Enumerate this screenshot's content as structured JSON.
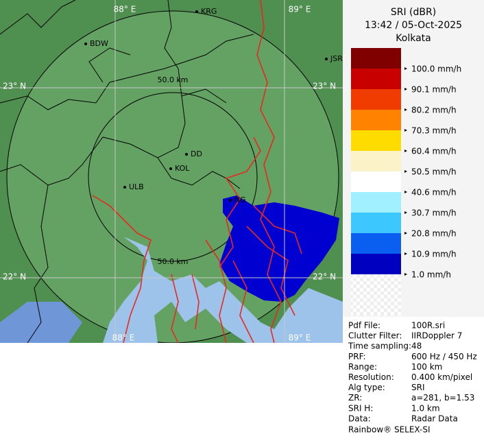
{
  "map": {
    "grid_labels": [
      "88° E",
      "89° E",
      "23° N",
      "23° N",
      "22° N",
      "22° N",
      "88° E",
      "89° E"
    ],
    "range_labels": [
      "50.0 km",
      "50.0 km"
    ],
    "cities": [
      "KRG",
      "BDW",
      "JSR",
      "DD",
      "KOL",
      "ULB",
      "NG"
    ]
  },
  "panel": {
    "title": "SRI (dBR)",
    "time": "13:42 / 05-Oct-2025",
    "site": "Kolkata",
    "legend": [
      {
        "label": "100.0 mm/h",
        "color": "#800000"
      },
      {
        "label": "90.1 mm/h",
        "color": "#c80000"
      },
      {
        "label": "80.2 mm/h",
        "color": "#f03c00"
      },
      {
        "label": "70.3 mm/h",
        "color": "#ff8200"
      },
      {
        "label": "60.4 mm/h",
        "color": "#ffdc00"
      },
      {
        "label": "50.5 mm/h",
        "color": "#fbf2c8"
      },
      {
        "label": "40.6 mm/h",
        "color": "#ffffff"
      },
      {
        "label": "30.7 mm/h",
        "color": "#a0f0ff"
      },
      {
        "label": "20.8 mm/h",
        "color": "#3cc8ff"
      },
      {
        "label": "10.9 mm/h",
        "color": "#0a5ff0"
      },
      {
        "label": "1.0 mm/h",
        "color": "#0000c0"
      }
    ],
    "info": [
      [
        "Pdf File:",
        "100R.sri"
      ],
      [
        "Clutter Filter:",
        "IIRDoppler 7"
      ],
      [
        "Time sampling:",
        "48"
      ],
      [
        "PRF:",
        "600 Hz / 450 Hz"
      ],
      [
        "Range:",
        "100 km"
      ],
      [
        "Resolution:",
        "0.400 km/pixel"
      ],
      [
        "Alg type:",
        "SRI"
      ],
      [
        "ZR:",
        "a=281, b=1.53"
      ],
      [
        "SRI H:",
        "1.0 km"
      ],
      [
        "Data:",
        "Radar Data"
      ]
    ],
    "footer": "Rainbow® SELEX-SI"
  }
}
